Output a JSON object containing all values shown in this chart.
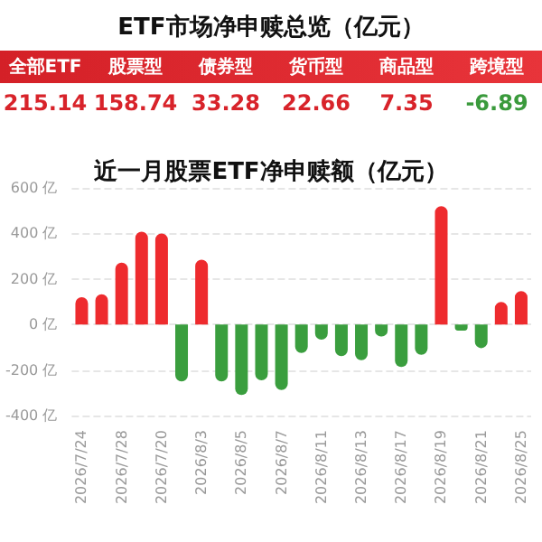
{
  "chart_data": [
    {
      "type": "other",
      "title": "ETF市场净申赎总览（亿元）",
      "categories": [
        "全部ETF",
        "股票型",
        "债券型",
        "货币型",
        "商品型",
        "跨境型"
      ],
      "values": [
        215.14,
        158.74,
        33.28,
        22.66,
        7.35,
        -6.89
      ],
      "value_labels": [
        "215.14",
        "158.74",
        "33.28",
        "22.66",
        "7.35",
        "-6.89"
      ]
    },
    {
      "type": "bar",
      "title": "近一月股票ETF净申赎额（亿元）",
      "categories": [
        "2026/7/24",
        null,
        "2026/7/28",
        null,
        "2026/7/20",
        null,
        "2026/8/3",
        null,
        "2026/8/5",
        null,
        "2026/8/7",
        null,
        "2026/8/11",
        null,
        "2026/8/13",
        null,
        "2026/8/17",
        null,
        "2026/8/19",
        null,
        "2026/8/21",
        null,
        "2026/8/25"
      ],
      "values": [
        120,
        133,
        272,
        408,
        400,
        -250,
        285,
        -250,
        -310,
        -245,
        -288,
        -125,
        -67,
        -139,
        -157,
        -53,
        -187,
        -133,
        520,
        -27,
        -104,
        99,
        147
      ],
      "colors": [
        "#ee2b2e",
        "#ee2b2e",
        "#ee2b2e",
        "#ee2b2e",
        "#ee2b2e",
        "#3a9e3e",
        "#ee2b2e",
        "#3a9e3e",
        "#3a9e3e",
        "#3a9e3e",
        "#3a9e3e",
        "#3a9e3e",
        "#3a9e3e",
        "#3a9e3e",
        "#3a9e3e",
        "#3a9e3e",
        "#3a9e3e",
        "#3a9e3e",
        "#ee2b2e",
        "#3a9e3e",
        "#3a9e3e",
        "#ee2b2e",
        "#ee2b2e"
      ],
      "ylim": [
        -400,
        600
      ],
      "yticks": [
        {
          "value": -400,
          "label": "-400 亿"
        },
        {
          "value": -200,
          "label": "-200 亿"
        },
        {
          "value": 0,
          "label": "0 亿"
        },
        {
          "value": 200,
          "label": "200 亿"
        },
        {
          "value": 400,
          "label": "400 亿"
        },
        {
          "value": 600,
          "label": "600 亿"
        }
      ],
      "grid": "y"
    }
  ]
}
